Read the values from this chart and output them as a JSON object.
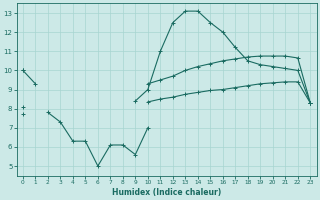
{
  "xlabel": "Humidex (Indice chaleur)",
  "x": [
    0,
    1,
    2,
    3,
    4,
    5,
    6,
    7,
    8,
    9,
    10,
    11,
    12,
    13,
    14,
    15,
    16,
    17,
    18,
    19,
    20,
    21,
    22,
    23
  ],
  "line1": [
    10.0,
    9.3,
    null,
    null,
    null,
    null,
    null,
    null,
    null,
    8.4,
    9.0,
    11.0,
    12.5,
    13.1,
    13.1,
    12.5,
    12.0,
    11.2,
    10.5,
    10.3,
    10.2,
    10.1,
    10.0,
    8.3
  ],
  "line2": [
    10.0,
    null,
    null,
    null,
    null,
    null,
    null,
    null,
    null,
    null,
    9.3,
    9.5,
    9.7,
    10.0,
    10.2,
    10.35,
    10.5,
    10.6,
    10.7,
    10.75,
    10.75,
    10.75,
    10.65,
    8.3
  ],
  "line3": [
    7.7,
    null,
    7.8,
    7.3,
    6.3,
    6.3,
    5.0,
    6.1,
    6.1,
    5.6,
    7.0,
    null,
    null,
    null,
    null,
    null,
    null,
    null,
    null,
    null,
    null,
    null,
    null,
    8.3
  ],
  "line4": [
    8.1,
    null,
    null,
    null,
    null,
    null,
    null,
    null,
    null,
    null,
    8.35,
    8.5,
    8.6,
    8.75,
    8.85,
    8.95,
    9.0,
    9.1,
    9.2,
    9.3,
    9.35,
    9.4,
    9.4,
    8.3
  ],
  "bg_color": "#cce9e7",
  "line_color": "#1a6b61",
  "grid_color": "#a8d5d1",
  "ylim": [
    4.5,
    13.5
  ],
  "xlim": [
    -0.5,
    23.5
  ],
  "yticks": [
    5,
    6,
    7,
    8,
    9,
    10,
    11,
    12,
    13
  ],
  "xticks": [
    0,
    1,
    2,
    3,
    4,
    5,
    6,
    7,
    8,
    9,
    10,
    11,
    12,
    13,
    14,
    15,
    16,
    17,
    18,
    19,
    20,
    21,
    22,
    23
  ]
}
